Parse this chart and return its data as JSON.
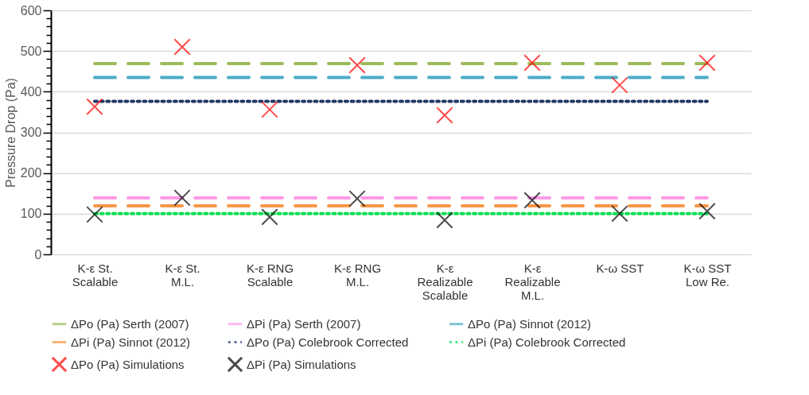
{
  "chart_data": {
    "type": "line",
    "ylabel": "Pressure Drop (Pa)",
    "categories": [
      "K-ε St. Scalable",
      "K-ε St. M.L.",
      "K-ε RNG Scalable",
      "K-ε RNG M.L.",
      "K-ε Realizable Scalable",
      "K-ε Realizable M.L.",
      "K-ω SST",
      "K-ω  SST Low Re."
    ],
    "ylim": [
      0,
      600
    ],
    "yticks": [
      0,
      {
        "value": 20,
        "label": null
      },
      {
        "value": 40,
        "label": null
      },
      {
        "value": 60,
        "label": null
      },
      {
        "value": 80,
        "label": null
      },
      100,
      {
        "value": 120,
        "label": null
      },
      {
        "value": 140,
        "label": null
      },
      {
        "value": 160,
        "label": null
      },
      {
        "value": 180,
        "label": null
      },
      200,
      {
        "value": 220,
        "label": null
      },
      {
        "value": 240,
        "label": null
      },
      {
        "value": 260,
        "label": null
      },
      {
        "value": 280,
        "label": null
      },
      300,
      {
        "value": 320,
        "label": null
      },
      {
        "value": 340,
        "label": null
      },
      {
        "value": 360,
        "label": null
      },
      {
        "value": 380,
        "label": null
      },
      400,
      {
        "value": 420,
        "label": null
      },
      {
        "value": 440,
        "label": null
      },
      {
        "value": 460,
        "label": null
      },
      {
        "value": 480,
        "label": null
      },
      500,
      {
        "value": 520,
        "label": null
      },
      {
        "value": 540,
        "label": null
      },
      {
        "value": 560,
        "label": null
      },
      {
        "value": 580,
        "label": null
      },
      600
    ],
    "grid": "y",
    "legend": "bottom",
    "series": [
      {
        "name": "ΔPo (Pa) Serth (2007)",
        "color": "#9bbb59",
        "line_style": "dashed",
        "values": [
          469,
          469,
          469,
          469,
          469,
          469,
          469,
          469
        ]
      },
      {
        "name": "ΔPi (Pa) Serth (2007)",
        "color": "#ff99e6",
        "line_style": "dashed",
        "values": [
          139,
          139,
          139,
          139,
          139,
          139,
          139,
          139
        ]
      },
      {
        "name": "ΔPo  (Pa) Sinnot (2012)",
        "color": "#4bacc6",
        "line_style": "dashed",
        "values": [
          435,
          435,
          435,
          435,
          435,
          435,
          435,
          435
        ]
      },
      {
        "name": "ΔPi (Pa) Sinnot (2012)",
        "color": "#f79646",
        "line_style": "dashed",
        "values": [
          119,
          119,
          119,
          119,
          119,
          119,
          119,
          119
        ]
      },
      {
        "name": "ΔPo  (Pa) Colebrook Corrected",
        "color": "#203864",
        "line_style": "dotted",
        "values": [
          376,
          376,
          376,
          376,
          376,
          376,
          376,
          376
        ]
      },
      {
        "name": "ΔPi (Pa) Colebrook Corrected",
        "color": "#00e04f",
        "line_style": "dotted",
        "values": [
          100,
          100,
          100,
          100,
          100,
          100,
          100,
          100
        ]
      },
      {
        "name": "ΔPo  (Pa) Simulations",
        "color": "#ff0000",
        "type": "scatter",
        "marker": "cross",
        "values": [
          363,
          510,
          356,
          465,
          342,
          471,
          416,
          471
        ]
      },
      {
        "name": "ΔPi (Pa) Simulations",
        "color": "#000000",
        "type": "scatter",
        "marker": "cross",
        "values": [
          98,
          139,
          92,
          137,
          84,
          133,
          100,
          106
        ]
      }
    ]
  }
}
